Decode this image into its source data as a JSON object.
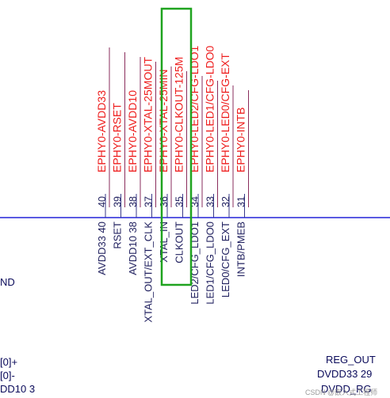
{
  "schematic": {
    "pins": [
      {
        "number": "40",
        "net": "EPHY0-AVDD33",
        "name": "AVDD33 40"
      },
      {
        "number": "39",
        "net": "EPHY0-RSET",
        "name": "RSET"
      },
      {
        "number": "38",
        "net": "EPHY0-AVDD10",
        "name": "AVDD10 38"
      },
      {
        "number": "37",
        "net": "EPHY0-XTAL-25MOUT",
        "name": "XTAL_OUT/EXT_CLK"
      },
      {
        "number": "36",
        "net": "EPHY0-XTAL-25MIN",
        "name": "XTAL_IN"
      },
      {
        "number": "35",
        "net": "EPHY0-CLKOUT-125M",
        "name": "CLKOUT"
      },
      {
        "number": "34",
        "net": "EPHY0-LED2/CFG-LDO1",
        "name": "LED2/CFG_LDO1"
      },
      {
        "number": "33",
        "net": "EPHY0-LED1/CFG-LDO0",
        "name": "LED1/CFG_LDO0"
      },
      {
        "number": "32",
        "net": "EPHY0-LED0/CFG-EXT",
        "name": "LED0/CFG_EXT"
      },
      {
        "number": "31",
        "net": "EPHY0-INTB",
        "name": "INTB/PMEB"
      }
    ],
    "left_labels": [
      "ND",
      "[0]+",
      "[0]-",
      "DD10 3"
    ],
    "right_labels": [
      "REG_OUT",
      "DVDD33 29",
      "DVDD_RG"
    ],
    "watermark": "CSDN @嵌入式工程师",
    "highlight_color": "#1fa31f",
    "net_color": "#ee1c1c",
    "body_line_color": "#2424d8"
  }
}
